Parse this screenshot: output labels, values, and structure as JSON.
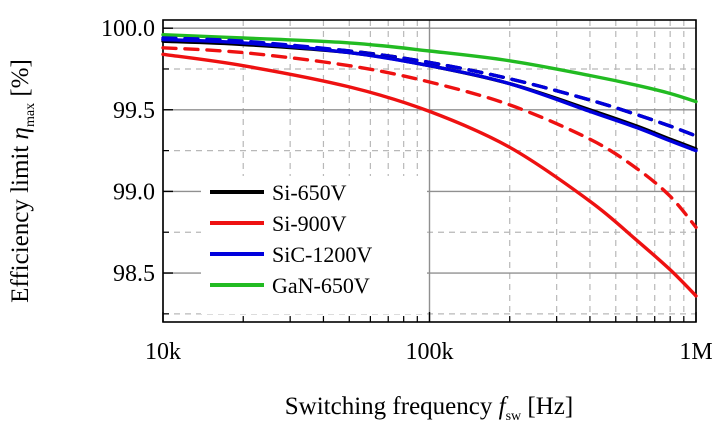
{
  "chart_data": {
    "type": "line",
    "x_scale": "log",
    "xlim": [
      10000,
      1000000
    ],
    "ylim": [
      98.2,
      100.05
    ],
    "grid": true,
    "legend_position": "bottom-left",
    "xlabel": {
      "main": "Switching frequency ",
      "symbol": "f",
      "sub": "sw",
      "unit": " [Hz]"
    },
    "ylabel": {
      "main": "Efficiency limit ",
      "symbol": "η",
      "sub": "max",
      "unit": " [%]"
    },
    "x_ticks": [
      {
        "value": 10000,
        "label": "10k"
      },
      {
        "value": 100000,
        "label": "100k"
      },
      {
        "value": 1000000,
        "label": "1M"
      }
    ],
    "y_ticks": [
      {
        "value": 98.5,
        "label": "98.5"
      },
      {
        "value": 99.0,
        "label": "99.0"
      },
      {
        "value": 99.5,
        "label": "99.5"
      },
      {
        "value": 100.0,
        "label": "100.0"
      }
    ],
    "y_minor_ticks": [
      98.25,
      98.75,
      99.25,
      99.75
    ],
    "x": [
      10000,
      20000,
      50000,
      100000,
      200000,
      400000,
      600000,
      800000,
      1000000
    ],
    "series": [
      {
        "name": "Si-650V",
        "color": "#000000",
        "dash": "solid",
        "values": [
          99.92,
          99.9,
          99.85,
          99.77,
          99.66,
          99.5,
          99.4,
          99.32,
          99.26
        ]
      },
      {
        "name": "Si-650V",
        "color": "#000000",
        "dash": "dashed",
        "values": [
          99.93,
          99.91,
          99.86,
          99.79,
          99.69,
          99.56,
          99.47,
          99.4,
          99.34
        ]
      },
      {
        "name": "Si-900V",
        "color": "#ee1111",
        "dash": "solid",
        "values": [
          99.84,
          99.77,
          99.64,
          99.49,
          99.27,
          98.94,
          98.7,
          98.52,
          98.36
        ]
      },
      {
        "name": "Si-900V",
        "color": "#ee1111",
        "dash": "dashed",
        "values": [
          99.88,
          99.85,
          99.77,
          99.67,
          99.53,
          99.32,
          99.14,
          98.97,
          98.78
        ]
      },
      {
        "name": "SiC-1200V",
        "color": "#0000dd",
        "dash": "solid",
        "values": [
          99.93,
          99.91,
          99.85,
          99.77,
          99.66,
          99.49,
          99.39,
          99.31,
          99.25
        ]
      },
      {
        "name": "SiC-1200V",
        "color": "#0000dd",
        "dash": "dashed",
        "values": [
          99.94,
          99.92,
          99.86,
          99.79,
          99.69,
          99.56,
          99.47,
          99.4,
          99.34
        ]
      },
      {
        "name": "GaN-650V",
        "color": "#22bb22",
        "dash": "solid",
        "values": [
          99.96,
          99.94,
          99.91,
          99.86,
          99.8,
          99.71,
          99.65,
          99.6,
          99.55
        ]
      }
    ],
    "legend": [
      {
        "label": "Si-650V",
        "color": "#000000"
      },
      {
        "label": "Si-900V",
        "color": "#ee1111"
      },
      {
        "label": "SiC-1200V",
        "color": "#0000dd"
      },
      {
        "label": "GaN-650V",
        "color": "#22bb22"
      }
    ]
  }
}
